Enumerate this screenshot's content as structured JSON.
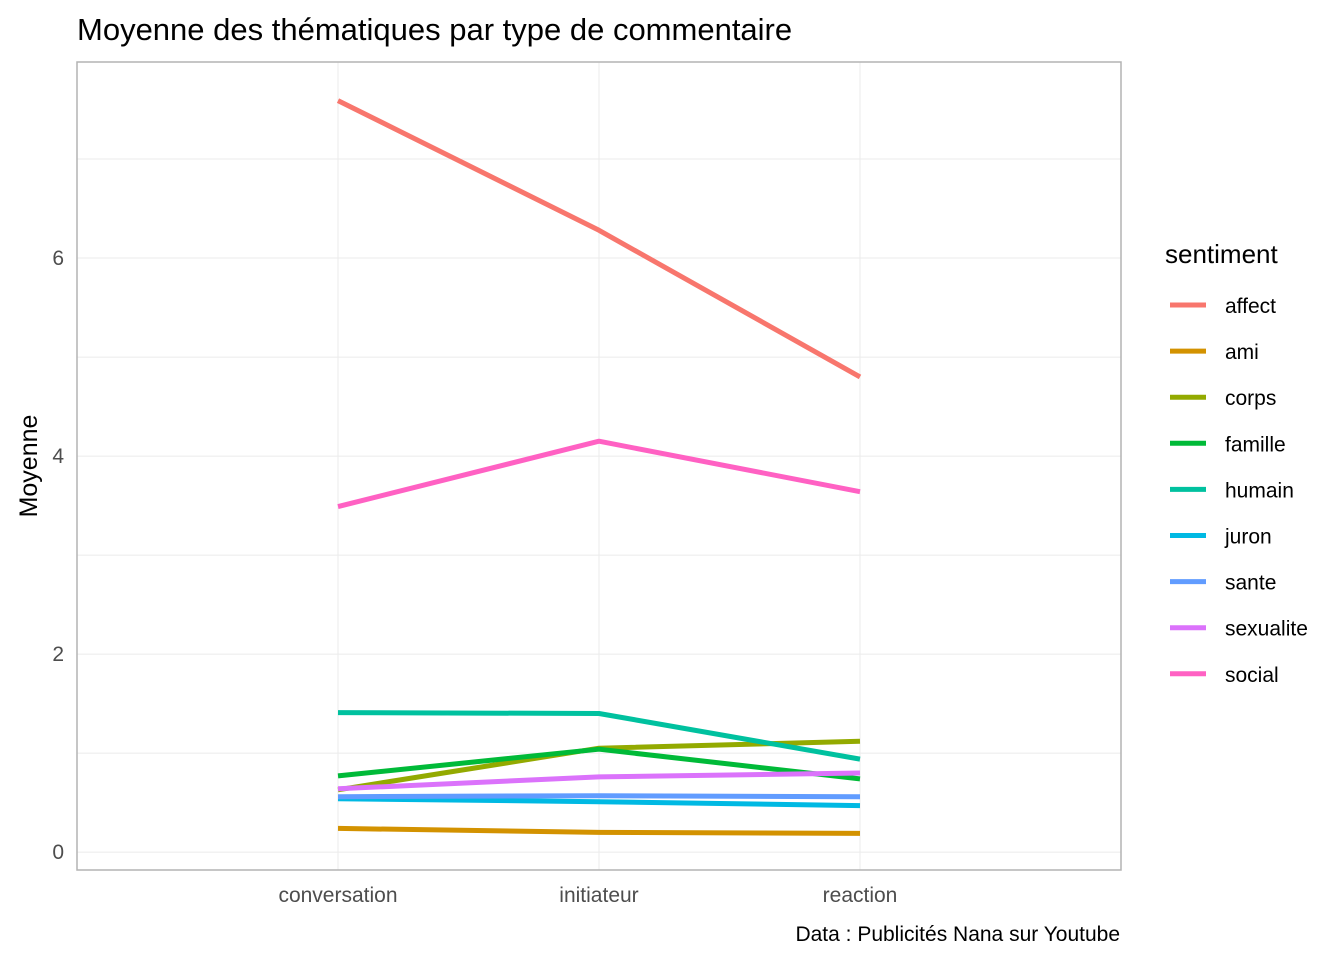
{
  "chart_data": {
    "type": "line",
    "title": "Moyenne des thématiques par type de commentaire",
    "xlabel": "",
    "ylabel": "Moyenne",
    "caption": "Data : Publicités Nana sur Youtube",
    "legend_title": "sentiment",
    "legend_position": "right",
    "grid": true,
    "categories": [
      "conversation",
      "initiateur",
      "reaction"
    ],
    "ylim": [
      -0.18,
      7.98
    ],
    "yticks": [
      0,
      2,
      4,
      6
    ],
    "series": [
      {
        "name": "affect",
        "color": "#F8766D",
        "values": [
          7.59,
          6.28,
          4.8
        ]
      },
      {
        "name": "ami",
        "color": "#D39200",
        "values": [
          0.24,
          0.2,
          0.19
        ]
      },
      {
        "name": "corps",
        "color": "#93AA00",
        "values": [
          0.63,
          1.05,
          1.12
        ]
      },
      {
        "name": "famille",
        "color": "#00BA38",
        "values": [
          0.77,
          1.04,
          0.74
        ]
      },
      {
        "name": "humain",
        "color": "#00C19F",
        "values": [
          1.41,
          1.4,
          0.94
        ]
      },
      {
        "name": "juron",
        "color": "#00B9E3",
        "values": [
          0.54,
          0.51,
          0.47
        ]
      },
      {
        "name": "sante",
        "color": "#619CFF",
        "values": [
          0.56,
          0.57,
          0.56
        ]
      },
      {
        "name": "sexualite",
        "color": "#DB72FB",
        "values": [
          0.64,
          0.76,
          0.8
        ]
      },
      {
        "name": "social",
        "color": "#FF61C3",
        "values": [
          3.49,
          4.15,
          3.64
        ]
      }
    ]
  }
}
